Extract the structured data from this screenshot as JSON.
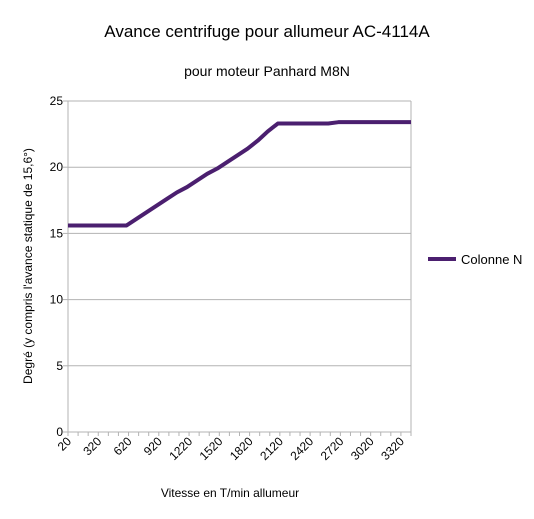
{
  "chart_data": {
    "type": "line",
    "title": "Avance centrifuge pour allumeur AC-4114A",
    "subtitle": "pour moteur Panhard M8N",
    "xlabel": "Vitesse en T/min allumeur",
    "ylabel": "Degré (y compris l'avance statique de 15,6°)",
    "ylim": [
      0,
      25
    ],
    "yticks": [
      0,
      5,
      10,
      15,
      20,
      25
    ],
    "xlim": [
      20,
      3420
    ],
    "xtick_labels": [
      "20",
      "320",
      "620",
      "920",
      "1220",
      "1520",
      "1820",
      "2120",
      "2420",
      "2720",
      "3020",
      "3320"
    ],
    "grid": "horizontal",
    "legend_position": "right",
    "series": [
      {
        "name": "Colonne N",
        "color": "#4b1f6f",
        "x": [
          20,
          100,
          200,
          300,
          400,
          500,
          600,
          700,
          800,
          900,
          1000,
          1100,
          1200,
          1300,
          1400,
          1500,
          1600,
          1700,
          1800,
          1900,
          2000,
          2050,
          2100,
          2150,
          2200,
          2300,
          2400,
          2500,
          2600,
          2700,
          2800,
          2900,
          3000,
          3100,
          3200,
          3300,
          3420
        ],
        "y": [
          15.6,
          15.6,
          15.6,
          15.6,
          15.6,
          15.6,
          15.6,
          16.1,
          16.6,
          17.1,
          17.6,
          18.1,
          18.5,
          19.0,
          19.5,
          19.9,
          20.4,
          20.9,
          21.4,
          22.0,
          22.7,
          23.0,
          23.3,
          23.3,
          23.3,
          23.3,
          23.3,
          23.3,
          23.3,
          23.4,
          23.4,
          23.4,
          23.4,
          23.4,
          23.4,
          23.4,
          23.4
        ]
      }
    ]
  }
}
